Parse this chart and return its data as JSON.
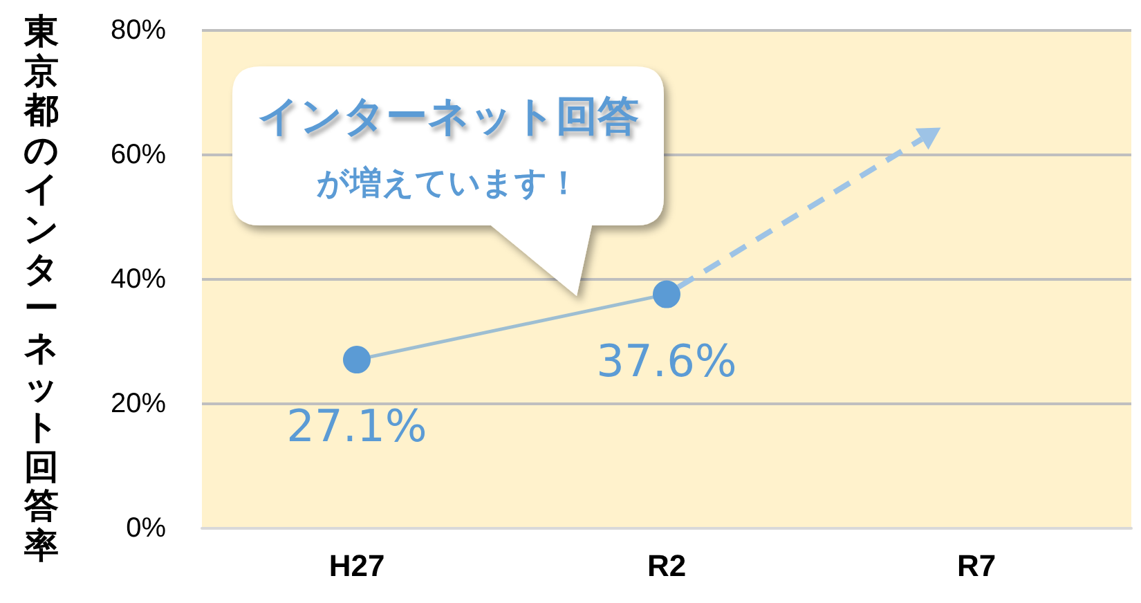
{
  "chart_data": {
    "type": "line",
    "ylabel": "東京都のインターネット回答率",
    "annotations": [
      "インターネット回答",
      "が増えています！"
    ],
    "categories": [
      "H27",
      "R2",
      "R7"
    ],
    "series": [
      {
        "color": "#5b9bd5",
        "values": [
          27.1,
          37.6,
          null
        ],
        "value_labels": [
          "27.1%",
          "37.6%",
          null
        ]
      }
    ],
    "ylim": [
      0,
      80
    ],
    "yticks": [
      {
        "value": 0,
        "label": "0%"
      },
      {
        "value": 20,
        "label": "20%"
      },
      {
        "value": 40,
        "label": "40%"
      },
      {
        "value": 60,
        "label": "60%"
      },
      {
        "value": 80,
        "label": "80%"
      }
    ],
    "grid": "y",
    "marker": "circle",
    "line_style": "solid"
  }
}
